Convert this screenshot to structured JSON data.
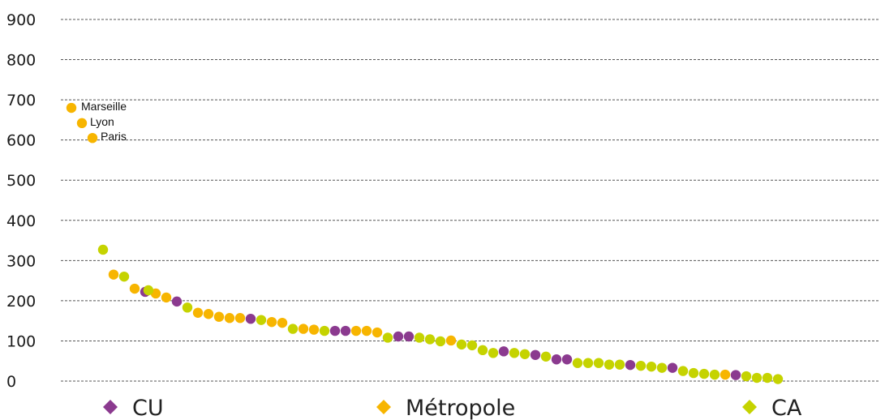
{
  "colors": {
    "CU": "#8b3a8f",
    "Métropole": "#f7b500",
    "CA": "#c5d300"
  },
  "chart_data": {
    "type": "scatter",
    "title": "",
    "xlabel": "",
    "ylabel": "",
    "ylim": [
      0,
      900
    ],
    "yticks": [
      0,
      100,
      200,
      300,
      400,
      500,
      600,
      700,
      800,
      900
    ],
    "grid": true,
    "legend_position": "bottom",
    "legend": [
      {
        "key": "CU",
        "label": "CU"
      },
      {
        "key": "Métropole",
        "label": "Métropole"
      },
      {
        "key": "CA",
        "label": "CA"
      }
    ],
    "annotations": [
      {
        "label": "Marseille",
        "x": 1,
        "y": 680
      },
      {
        "label": "Lyon",
        "x": 2,
        "y": 642
      },
      {
        "label": "Paris",
        "x": 3,
        "y": 605
      }
    ],
    "series": [
      {
        "key": "Métropole",
        "points": [
          [
            1,
            680
          ],
          [
            2,
            642
          ],
          [
            3,
            605
          ],
          [
            5,
            265
          ],
          [
            7,
            230
          ],
          [
            9,
            218
          ],
          [
            10,
            208
          ],
          [
            13,
            170
          ],
          [
            14,
            167
          ],
          [
            15,
            160
          ],
          [
            16,
            157
          ],
          [
            17,
            157
          ],
          [
            20,
            147
          ],
          [
            21,
            145
          ],
          [
            23,
            130
          ],
          [
            24,
            128
          ],
          [
            28,
            125
          ],
          [
            29,
            125
          ],
          [
            30,
            121
          ],
          [
            37,
            101
          ],
          [
            63,
            16
          ]
        ]
      },
      {
        "key": "CU",
        "points": [
          [
            8,
            222
          ],
          [
            11,
            198
          ],
          [
            18,
            155
          ],
          [
            27,
            125
          ],
          [
            26,
            125
          ],
          [
            32,
            111
          ],
          [
            33,
            111
          ],
          [
            42,
            74
          ],
          [
            45,
            65
          ],
          [
            47,
            54
          ],
          [
            48,
            54
          ],
          [
            54,
            40
          ],
          [
            58,
            33
          ],
          [
            64,
            15
          ]
        ]
      },
      {
        "key": "CA",
        "points": [
          [
            4,
            327
          ],
          [
            6,
            260
          ],
          [
            8.3,
            226
          ],
          [
            12,
            183
          ],
          [
            19,
            152
          ],
          [
            22,
            130
          ],
          [
            25,
            125
          ],
          [
            31,
            108
          ],
          [
            34,
            108
          ],
          [
            35,
            104
          ],
          [
            36,
            99
          ],
          [
            38,
            91
          ],
          [
            39,
            89
          ],
          [
            40,
            77
          ],
          [
            41,
            70
          ],
          [
            43,
            70
          ],
          [
            44,
            67
          ],
          [
            46,
            61
          ],
          [
            49,
            45
          ],
          [
            50,
            45
          ],
          [
            51,
            45
          ],
          [
            52,
            41
          ],
          [
            53,
            41
          ],
          [
            55,
            38
          ],
          [
            56,
            36
          ],
          [
            57,
            33
          ],
          [
            59,
            25
          ],
          [
            60,
            20
          ],
          [
            61,
            18
          ],
          [
            62,
            16
          ],
          [
            65,
            12
          ],
          [
            66,
            8
          ],
          [
            67,
            8
          ],
          [
            68,
            5
          ]
        ]
      }
    ]
  }
}
